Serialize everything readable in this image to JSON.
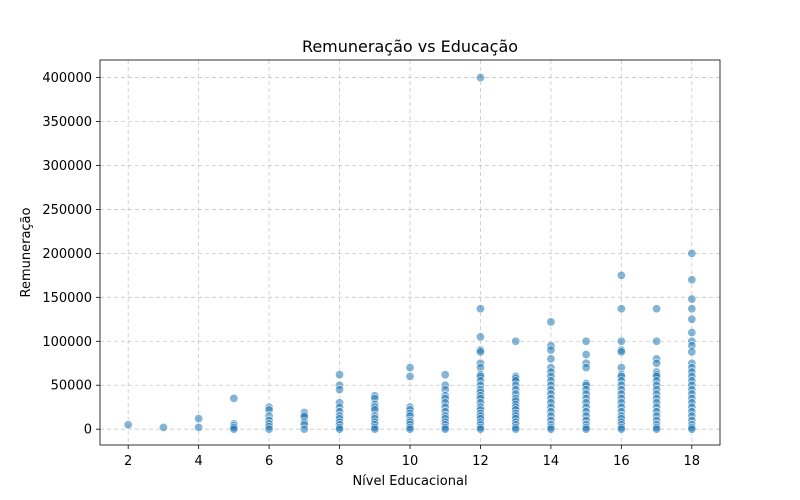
{
  "chart_data": {
    "type": "scatter",
    "title": "Remuneração vs Educação",
    "xlabel": "Nível Educacional",
    "ylabel": "Remuneração",
    "xlim": [
      1.2,
      18.8
    ],
    "ylim": [
      -18000,
      420000
    ],
    "xticks": [
      2,
      4,
      6,
      8,
      10,
      12,
      14,
      16,
      18
    ],
    "yticks": [
      0,
      50000,
      100000,
      150000,
      200000,
      250000,
      300000,
      350000,
      400000
    ],
    "grid": true,
    "color": "#1f77b4",
    "points": [
      [
        2,
        5000
      ],
      [
        3,
        2000
      ],
      [
        4,
        12000
      ],
      [
        4,
        2000
      ],
      [
        5,
        35000
      ],
      [
        5,
        6000
      ],
      [
        5,
        4000
      ],
      [
        5,
        2000
      ],
      [
        5,
        0
      ],
      [
        6,
        25000
      ],
      [
        6,
        22000
      ],
      [
        6,
        15000
      ],
      [
        6,
        10000
      ],
      [
        6,
        6000
      ],
      [
        6,
        3000
      ],
      [
        6,
        0
      ],
      [
        7,
        19000
      ],
      [
        7,
        16000
      ],
      [
        7,
        14000
      ],
      [
        7,
        8000
      ],
      [
        7,
        5000
      ],
      [
        7,
        0
      ],
      [
        8,
        62000
      ],
      [
        8,
        50000
      ],
      [
        8,
        45000
      ],
      [
        8,
        30000
      ],
      [
        8,
        25000
      ],
      [
        8,
        20000
      ],
      [
        8,
        15000
      ],
      [
        8,
        12000
      ],
      [
        8,
        8000
      ],
      [
        8,
        5000
      ],
      [
        8,
        2000
      ],
      [
        8,
        0
      ],
      [
        9,
        38000
      ],
      [
        9,
        35000
      ],
      [
        9,
        28000
      ],
      [
        9,
        25000
      ],
      [
        9,
        22000
      ],
      [
        9,
        15000
      ],
      [
        9,
        12000
      ],
      [
        9,
        8000
      ],
      [
        9,
        5000
      ],
      [
        9,
        2000
      ],
      [
        9,
        0
      ],
      [
        10,
        70000
      ],
      [
        10,
        60000
      ],
      [
        10,
        25000
      ],
      [
        10,
        22000
      ],
      [
        10,
        18000
      ],
      [
        10,
        15000
      ],
      [
        10,
        10000
      ],
      [
        10,
        8000
      ],
      [
        10,
        5000
      ],
      [
        10,
        2000
      ],
      [
        10,
        0
      ],
      [
        11,
        62000
      ],
      [
        11,
        50000
      ],
      [
        11,
        45000
      ],
      [
        11,
        38000
      ],
      [
        11,
        35000
      ],
      [
        11,
        30000
      ],
      [
        11,
        25000
      ],
      [
        11,
        20000
      ],
      [
        11,
        15000
      ],
      [
        11,
        12000
      ],
      [
        11,
        8000
      ],
      [
        11,
        5000
      ],
      [
        11,
        2000
      ],
      [
        11,
        0
      ],
      [
        12,
        400000
      ],
      [
        12,
        137000
      ],
      [
        12,
        105000
      ],
      [
        12,
        90000
      ],
      [
        12,
        88000
      ],
      [
        12,
        75000
      ],
      [
        12,
        70000
      ],
      [
        12,
        62000
      ],
      [
        12,
        60000
      ],
      [
        12,
        55000
      ],
      [
        12,
        50000
      ],
      [
        12,
        45000
      ],
      [
        12,
        42000
      ],
      [
        12,
        38000
      ],
      [
        12,
        35000
      ],
      [
        12,
        30000
      ],
      [
        12,
        25000
      ],
      [
        12,
        22000
      ],
      [
        12,
        18000
      ],
      [
        12,
        15000
      ],
      [
        12,
        12000
      ],
      [
        12,
        8000
      ],
      [
        12,
        5000
      ],
      [
        12,
        2000
      ],
      [
        12,
        0
      ],
      [
        13,
        100000
      ],
      [
        13,
        60000
      ],
      [
        13,
        58000
      ],
      [
        13,
        55000
      ],
      [
        13,
        50000
      ],
      [
        13,
        45000
      ],
      [
        13,
        40000
      ],
      [
        13,
        35000
      ],
      [
        13,
        32000
      ],
      [
        13,
        28000
      ],
      [
        13,
        25000
      ],
      [
        13,
        22000
      ],
      [
        13,
        18000
      ],
      [
        13,
        15000
      ],
      [
        13,
        12000
      ],
      [
        13,
        8000
      ],
      [
        13,
        5000
      ],
      [
        13,
        2000
      ],
      [
        13,
        0
      ],
      [
        14,
        122000
      ],
      [
        14,
        95000
      ],
      [
        14,
        90000
      ],
      [
        14,
        80000
      ],
      [
        14,
        70000
      ],
      [
        14,
        65000
      ],
      [
        14,
        60000
      ],
      [
        14,
        55000
      ],
      [
        14,
        50000
      ],
      [
        14,
        45000
      ],
      [
        14,
        40000
      ],
      [
        14,
        35000
      ],
      [
        14,
        30000
      ],
      [
        14,
        25000
      ],
      [
        14,
        20000
      ],
      [
        14,
        15000
      ],
      [
        14,
        10000
      ],
      [
        14,
        5000
      ],
      [
        14,
        2000
      ],
      [
        14,
        0
      ],
      [
        15,
        100000
      ],
      [
        15,
        85000
      ],
      [
        15,
        75000
      ],
      [
        15,
        70000
      ],
      [
        15,
        52000
      ],
      [
        15,
        50000
      ],
      [
        15,
        45000
      ],
      [
        15,
        40000
      ],
      [
        15,
        35000
      ],
      [
        15,
        30000
      ],
      [
        15,
        25000
      ],
      [
        15,
        20000
      ],
      [
        15,
        15000
      ],
      [
        15,
        10000
      ],
      [
        15,
        5000
      ],
      [
        15,
        2000
      ],
      [
        15,
        0
      ],
      [
        16,
        175000
      ],
      [
        16,
        137000
      ],
      [
        16,
        100000
      ],
      [
        16,
        90000
      ],
      [
        16,
        88000
      ],
      [
        16,
        70000
      ],
      [
        16,
        62000
      ],
      [
        16,
        60000
      ],
      [
        16,
        55000
      ],
      [
        16,
        50000
      ],
      [
        16,
        45000
      ],
      [
        16,
        40000
      ],
      [
        16,
        35000
      ],
      [
        16,
        30000
      ],
      [
        16,
        25000
      ],
      [
        16,
        20000
      ],
      [
        16,
        15000
      ],
      [
        16,
        12000
      ],
      [
        16,
        8000
      ],
      [
        16,
        5000
      ],
      [
        16,
        2000
      ],
      [
        16,
        0
      ],
      [
        17,
        137000
      ],
      [
        17,
        100000
      ],
      [
        17,
        80000
      ],
      [
        17,
        75000
      ],
      [
        17,
        65000
      ],
      [
        17,
        62000
      ],
      [
        17,
        60000
      ],
      [
        17,
        55000
      ],
      [
        17,
        50000
      ],
      [
        17,
        45000
      ],
      [
        17,
        40000
      ],
      [
        17,
        35000
      ],
      [
        17,
        30000
      ],
      [
        17,
        25000
      ],
      [
        17,
        20000
      ],
      [
        17,
        15000
      ],
      [
        17,
        10000
      ],
      [
        17,
        5000
      ],
      [
        17,
        2000
      ],
      [
        17,
        0
      ],
      [
        18,
        200000
      ],
      [
        18,
        170000
      ],
      [
        18,
        148000
      ],
      [
        18,
        137000
      ],
      [
        18,
        125000
      ],
      [
        18,
        110000
      ],
      [
        18,
        100000
      ],
      [
        18,
        95000
      ],
      [
        18,
        88000
      ],
      [
        18,
        75000
      ],
      [
        18,
        70000
      ],
      [
        18,
        65000
      ],
      [
        18,
        60000
      ],
      [
        18,
        55000
      ],
      [
        18,
        50000
      ],
      [
        18,
        45000
      ],
      [
        18,
        40000
      ],
      [
        18,
        35000
      ],
      [
        18,
        30000
      ],
      [
        18,
        25000
      ],
      [
        18,
        20000
      ],
      [
        18,
        15000
      ],
      [
        18,
        10000
      ],
      [
        18,
        5000
      ],
      [
        18,
        2000
      ],
      [
        18,
        0
      ]
    ]
  }
}
